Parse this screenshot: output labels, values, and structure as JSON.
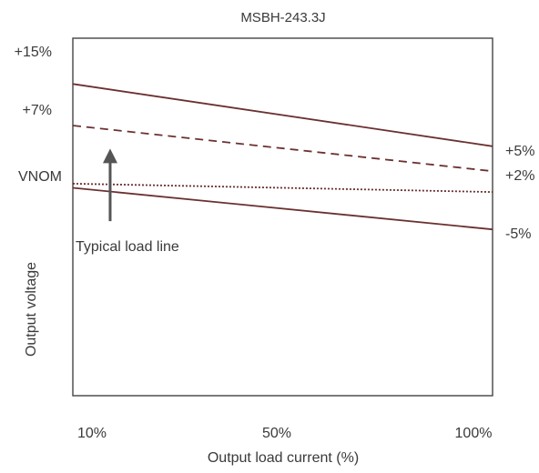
{
  "chart_data": {
    "type": "line",
    "title": "MSBH-243.3J",
    "xlabel": "Output load current (%)",
    "ylabel": "Output voltage",
    "x_ticks": [
      "10%",
      "50%",
      "100%"
    ],
    "y_ticks": [
      "+15%",
      "+7%",
      "VNOM"
    ],
    "xlim": [
      10,
      100
    ],
    "ylim": [
      -25,
      18
    ],
    "grid": false,
    "legend": "none",
    "series": [
      {
        "style": "solid",
        "color": "#6b3030",
        "x": [
          10,
          100
        ],
        "y": [
          12.5,
          5
        ],
        "end_label": "+5%"
      },
      {
        "style": "dashed",
        "color": "#6b3030",
        "x": [
          10,
          100
        ],
        "y": [
          7.5,
          2
        ],
        "end_label": "+2%"
      },
      {
        "style": "dotted",
        "color": "#6b3030",
        "x": [
          10,
          100
        ],
        "y": [
          0.5,
          -0.5
        ],
        "end_label": ""
      },
      {
        "style": "solid",
        "color": "#6b3030",
        "x": [
          10,
          100
        ],
        "y": [
          0,
          -5
        ],
        "end_label": "-5%"
      }
    ],
    "annotation": {
      "text": "Typical load line",
      "arrow_color": "#555555",
      "arrow_x": 18,
      "arrow_y_from": -4,
      "arrow_y_to": 4.5
    }
  },
  "colors": {
    "frame": "#444444",
    "text": "#3a3a3a"
  }
}
